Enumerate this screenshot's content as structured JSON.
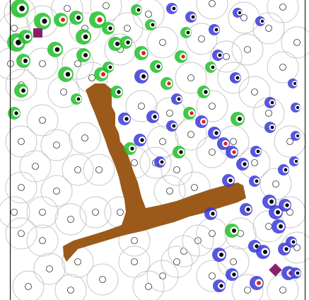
{
  "scene": {
    "background": "#ffffff",
    "colors": {
      "obstacle": "#9b5a1a",
      "start_marker": "#8b1e6b",
      "goal_marker": "#8b1e6b",
      "ring": "#c8c8c8",
      "green_agent": "#22c02a",
      "blue_agent": "#3a3ad8",
      "agent_core": "#ffffff",
      "agent_dot_black": "#000000",
      "agent_dot_red": "#e02020"
    }
  }
}
